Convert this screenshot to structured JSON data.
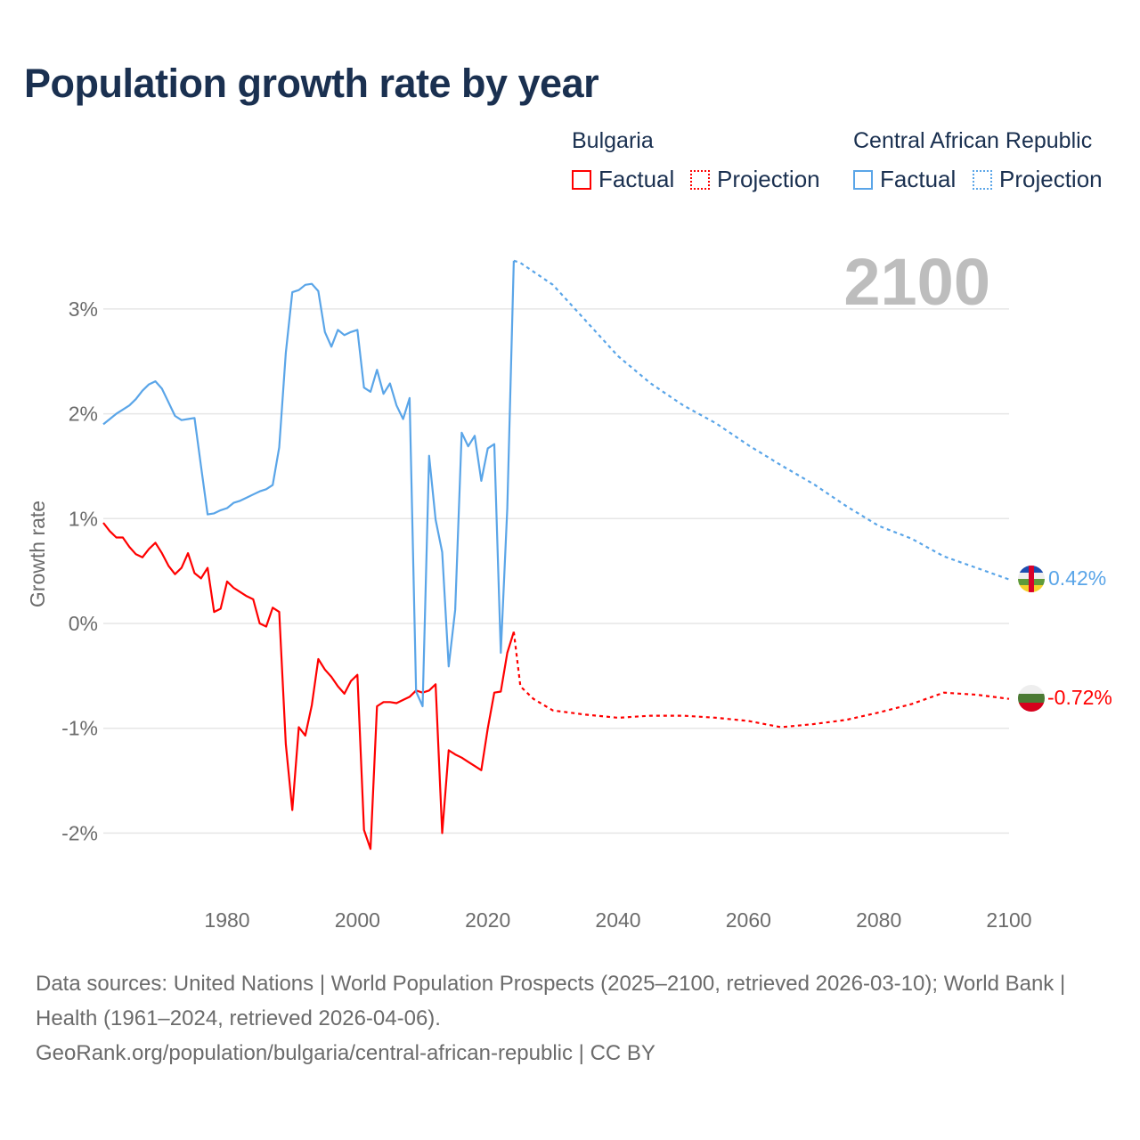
{
  "title": "Population growth rate by year",
  "legend": {
    "groups": [
      {
        "name": "Bulgaria",
        "factual": "Factual",
        "projection": "Projection",
        "color": "#ff0000"
      },
      {
        "name": "Central African Republic",
        "factual": "Factual",
        "projection": "Projection",
        "color": "#5aa5e8"
      }
    ]
  },
  "year_label": "2100",
  "end_labels": {
    "car": "0.42%",
    "bulgaria": "-0.72%"
  },
  "footer": {
    "sources": "Data sources: United Nations | World Population Prospects (2025–2100, retrieved 2026-03-10); World Bank | Health (1961–2024, retrieved 2026-04-06).",
    "link": "GeoRank.org/population/bulgaria/central-african-republic | CC BY"
  },
  "chart_data": {
    "type": "line",
    "title": "Population growth rate by year",
    "xlabel": "",
    "ylabel": "Growth rate",
    "xlim": [
      1961,
      2100
    ],
    "ylim": [
      -2.5,
      3.6
    ],
    "x_ticks": [
      1980,
      2000,
      2020,
      2040,
      2060,
      2080,
      2100
    ],
    "y_ticks": [
      3,
      2,
      1,
      0,
      -1,
      -2
    ],
    "y_tick_labels": [
      "3%",
      "2%",
      "1%",
      "0%",
      "-1%",
      "-2%"
    ],
    "grid": true,
    "series": [
      {
        "name": "Bulgaria Factual",
        "color": "#ff0000",
        "style": "solid",
        "x_start": 1961,
        "values": [
          0.96,
          0.88,
          0.82,
          0.82,
          0.73,
          0.66,
          0.63,
          0.71,
          0.77,
          0.67,
          0.55,
          0.47,
          0.53,
          0.67,
          0.48,
          0.43,
          0.53,
          0.11,
          0.14,
          0.4,
          0.34,
          0.3,
          0.26,
          0.23,
          0.0,
          -0.03,
          0.15,
          0.11,
          -1.15,
          -1.78,
          -0.99,
          -1.07,
          -0.78,
          -0.34,
          -0.44,
          -0.51,
          -0.6,
          -0.67,
          -0.55,
          -0.49,
          -1.97,
          -2.15,
          -0.79,
          -0.75,
          -0.75,
          -0.76,
          -0.73,
          -0.7,
          -0.64,
          -0.66,
          -0.64,
          -0.58,
          -2.0,
          -1.21,
          -1.25,
          -1.28,
          -1.32,
          -1.36,
          -1.4,
          -1.0,
          -0.66,
          -0.65,
          -0.28,
          -0.08
        ]
      },
      {
        "name": "Bulgaria Projection",
        "color": "#ff0000",
        "style": "dotted",
        "x": [
          2024,
          2025,
          2027,
          2030,
          2035,
          2040,
          2045,
          2050,
          2055,
          2060,
          2065,
          2070,
          2075,
          2080,
          2085,
          2090,
          2095,
          2100
        ],
        "values": [
          -0.08,
          -0.6,
          -0.72,
          -0.83,
          -0.87,
          -0.9,
          -0.88,
          -0.88,
          -0.9,
          -0.93,
          -0.99,
          -0.96,
          -0.92,
          -0.85,
          -0.77,
          -0.66,
          -0.68,
          -0.72
        ]
      },
      {
        "name": "Central African Republic Factual",
        "color": "#5aa5e8",
        "style": "solid",
        "x_start": 1961,
        "values": [
          1.9,
          1.95,
          2.0,
          2.04,
          2.08,
          2.14,
          2.22,
          2.28,
          2.31,
          2.24,
          2.11,
          1.98,
          1.94,
          1.95,
          1.96,
          1.5,
          1.04,
          1.05,
          1.08,
          1.1,
          1.15,
          1.17,
          1.2,
          1.23,
          1.26,
          1.28,
          1.32,
          1.68,
          2.58,
          3.16,
          3.18,
          3.23,
          3.24,
          3.17,
          2.78,
          2.64,
          2.8,
          2.75,
          2.78,
          2.8,
          2.25,
          2.21,
          2.42,
          2.19,
          2.29,
          2.08,
          1.95,
          2.15,
          -0.65,
          -0.79,
          1.6,
          0.99,
          0.68,
          -0.41,
          0.13,
          1.82,
          1.69,
          1.79,
          1.36,
          1.67,
          1.71,
          -0.28,
          1.1,
          3.46
        ]
      },
      {
        "name": "Central African Republic Projection",
        "color": "#5aa5e8",
        "style": "dotted",
        "x": [
          2024,
          2025,
          2030,
          2035,
          2040,
          2045,
          2050,
          2055,
          2060,
          2065,
          2070,
          2075,
          2080,
          2085,
          2090,
          2095,
          2100
        ],
        "values": [
          3.46,
          3.44,
          3.23,
          2.89,
          2.55,
          2.29,
          2.08,
          1.91,
          1.7,
          1.51,
          1.33,
          1.12,
          0.93,
          0.81,
          0.64,
          0.53,
          0.42
        ]
      }
    ]
  }
}
